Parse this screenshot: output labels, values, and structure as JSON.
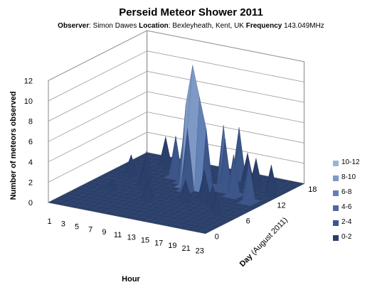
{
  "title": "Perseid Meteor Shower 2011",
  "subtitle": {
    "observer_label": "Observer",
    "observer_value": ": Simon Dawes ",
    "location_label": "Location",
    "location_value": ": Bexleyheath, Kent, UK ",
    "frequency_label": "Frequency",
    "frequency_value": " 143.049MHz"
  },
  "chart_data": {
    "type": "surface",
    "title": "Perseid Meteor Shower 2011",
    "xlabel": "Hour",
    "ylabel": "Day (August 2011)",
    "zlabel": "Number of meteors observed",
    "x_ticks": [
      "1",
      "3",
      "5",
      "7",
      "9",
      "11",
      "13",
      "15",
      "17",
      "19",
      "21",
      "23"
    ],
    "y_ticks": [
      "0",
      "6",
      "12",
      "18"
    ],
    "z_ticks": [
      "0",
      "2",
      "4",
      "6",
      "8",
      "10",
      "12"
    ],
    "zlim": [
      0,
      12
    ],
    "hours": [
      0,
      23
    ],
    "days": [
      0,
      19
    ],
    "grid": true,
    "legend_position": "right",
    "legend": [
      {
        "label": "10-12",
        "color": "#9db3d6"
      },
      {
        "label": "8-10",
        "color": "#7e99c6"
      },
      {
        "label": "6-8",
        "color": "#6380b4"
      },
      {
        "label": "4-6",
        "color": "#4d6aa0"
      },
      {
        "label": "2-4",
        "color": "#3c568a"
      },
      {
        "label": "0-2",
        "color": "#2a3f6a"
      }
    ],
    "peaks": [
      {
        "hour": 12,
        "day": 12,
        "count": 12
      },
      {
        "hour": 13,
        "day": 12,
        "count": 9
      },
      {
        "hour": 11,
        "day": 12,
        "count": 8
      },
      {
        "hour": 12,
        "day": 13,
        "count": 7
      },
      {
        "hour": 14,
        "day": 12,
        "count": 6
      },
      {
        "hour": 12,
        "day": 11,
        "count": 6
      },
      {
        "hour": 13,
        "day": 13,
        "count": 5
      },
      {
        "hour": 15,
        "day": 14,
        "count": 6
      },
      {
        "hour": 16,
        "day": 13,
        "count": 5
      },
      {
        "hour": 10,
        "day": 13,
        "count": 5
      },
      {
        "hour": 8,
        "day": 14,
        "count": 4
      },
      {
        "hour": 11,
        "day": 14,
        "count": 4
      },
      {
        "hour": 15,
        "day": 17,
        "count": 5
      },
      {
        "hour": 17,
        "day": 16,
        "count": 3
      },
      {
        "hour": 18,
        "day": 12,
        "count": 4
      },
      {
        "hour": 19,
        "day": 15,
        "count": 3
      },
      {
        "hour": 21,
        "day": 11,
        "count": 4
      },
      {
        "hour": 22,
        "day": 14,
        "count": 3
      },
      {
        "hour": 6,
        "day": 11,
        "count": 3
      },
      {
        "hour": 5,
        "day": 16,
        "count": 3
      },
      {
        "hour": 3,
        "day": 12,
        "count": 2
      },
      {
        "hour": 7,
        "day": 9,
        "count": 2
      },
      {
        "hour": 14,
        "day": 8,
        "count": 2
      },
      {
        "hour": 16,
        "day": 9,
        "count": 3
      },
      {
        "hour": 18,
        "day": 8,
        "count": 2
      },
      {
        "hour": 20,
        "day": 6,
        "count": 2
      },
      {
        "hour": 10,
        "day": 6,
        "count": 2
      },
      {
        "hour": 4,
        "day": 7,
        "count": 1
      },
      {
        "hour": 23,
        "day": 10,
        "count": 2
      }
    ]
  }
}
